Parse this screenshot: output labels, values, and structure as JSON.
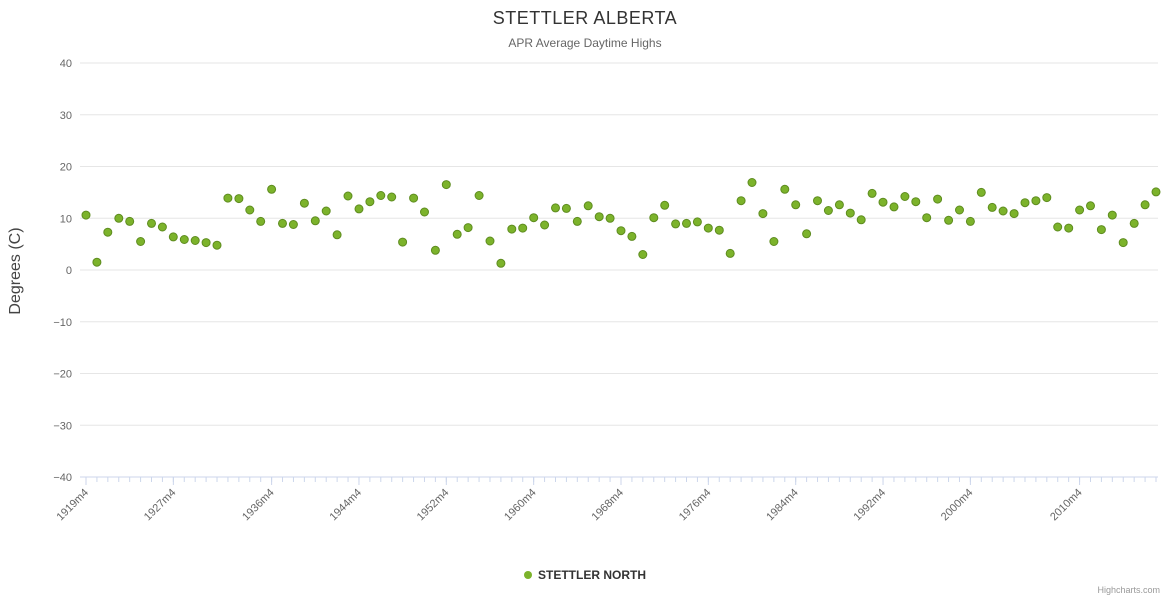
{
  "title": "STETTLER ALBERTA",
  "subtitle": "APR Average Daytime Highs",
  "credits": "Highcharts.com",
  "legend": {
    "label": "STETTLER NORTH"
  },
  "colors": {
    "marker_fill": "#7cb32b",
    "marker_stroke": "#5e8c1f",
    "grid": "#e6e6e6",
    "axis_line": "#ccd6eb",
    "tick": "#ccd6eb",
    "axis_label": "#666666"
  },
  "chart_data": {
    "type": "scatter",
    "title": "STETTLER ALBERTA",
    "subtitle": "APR Average Daytime Highs",
    "xlabel": "",
    "ylabel": "Degrees (C)",
    "ylim": [
      -40,
      40
    ],
    "y_ticks": [
      -40,
      -30,
      -20,
      -10,
      0,
      10,
      20,
      30,
      40
    ],
    "grid": "horizontal",
    "legend_position": "bottom-center",
    "x_tick_labels": [
      "1919m4",
      "1927m4",
      "1936m4",
      "1944m4",
      "1952m4",
      "1960m4",
      "1968m4",
      "1976m4",
      "1984m4",
      "1992m4",
      "2000m4",
      "2010m4"
    ],
    "categories": [
      "1919m4",
      "1920m4",
      "1921m4",
      "1922m4",
      "1923m4",
      "1924m4",
      "1925m4",
      "1926m4",
      "1927m4",
      "1928m4",
      "1929m4",
      "1930m4",
      "1931m4",
      "1932m4",
      "1933m4",
      "1934m4",
      "1935m4",
      "1936m4",
      "1937m4",
      "1938m4",
      "1939m4",
      "1940m4",
      "1941m4",
      "1942m4",
      "1943m4",
      "1944m4",
      "1945m4",
      "1946m4",
      "1947m4",
      "1948m4",
      "1949m4",
      "1950m4",
      "1951m4",
      "1952m4",
      "1953m4",
      "1954m4",
      "1955m4",
      "1956m4",
      "1957m4",
      "1958m4",
      "1959m4",
      "1960m4",
      "1961m4",
      "1962m4",
      "1963m4",
      "1964m4",
      "1965m4",
      "1966m4",
      "1967m4",
      "1968m4",
      "1969m4",
      "1970m4",
      "1971m4",
      "1972m4",
      "1973m4",
      "1974m4",
      "1975m4",
      "1976m4",
      "1977m4",
      "1978m4",
      "1979m4",
      "1980m4",
      "1981m4",
      "1982m4",
      "1983m4",
      "1984m4",
      "1985m4",
      "1986m4",
      "1987m4",
      "1988m4",
      "1989m4",
      "1990m4",
      "1991m4",
      "1992m4",
      "1993m4",
      "1994m4",
      "1995m4",
      "1996m4",
      "1997m4",
      "1998m4",
      "1999m4",
      "2000m4",
      "2001m4",
      "2002m4",
      "2003m4",
      "2004m4",
      "2005m4",
      "2006m4",
      "2007m4",
      "2008m4",
      "2009m4",
      "2010m4",
      "2011m4",
      "2012m4",
      "2013m4",
      "2014m4",
      "2015m4",
      "2016m4",
      "2017m4"
    ],
    "series": [
      {
        "name": "STETTLER NORTH",
        "color": "#7cb32b",
        "values": [
          10.6,
          1.5,
          7.3,
          10.0,
          9.4,
          5.5,
          9.0,
          8.3,
          6.4,
          5.9,
          5.7,
          5.3,
          4.8,
          13.9,
          13.8,
          11.6,
          9.4,
          15.6,
          9.0,
          8.8,
          12.9,
          9.5,
          11.4,
          6.8,
          14.3,
          11.8,
          13.2,
          14.4,
          14.1,
          5.4,
          13.9,
          11.2,
          3.8,
          16.5,
          6.9,
          8.2,
          14.4,
          5.6,
          1.3,
          7.9,
          8.1,
          10.1,
          8.7,
          12.0,
          11.9,
          9.4,
          12.4,
          10.3,
          10.0,
          7.6,
          6.5,
          3.0,
          10.1,
          12.5,
          8.9,
          9.0,
          9.3,
          8.1,
          7.7,
          3.2,
          13.4,
          16.9,
          10.9,
          5.5,
          15.6,
          12.6,
          7.0,
          13.4,
          11.5,
          12.6,
          11.0,
          9.7,
          14.8,
          13.1,
          12.2,
          14.2,
          13.2,
          10.1,
          13.7,
          9.6,
          11.6,
          9.4,
          15.0,
          12.1,
          11.4,
          10.9,
          13.0,
          13.4,
          14.0,
          8.3,
          8.1,
          11.6,
          12.4,
          7.8,
          10.6,
          5.3,
          9.0,
          12.6,
          15.1
        ]
      }
    ]
  }
}
